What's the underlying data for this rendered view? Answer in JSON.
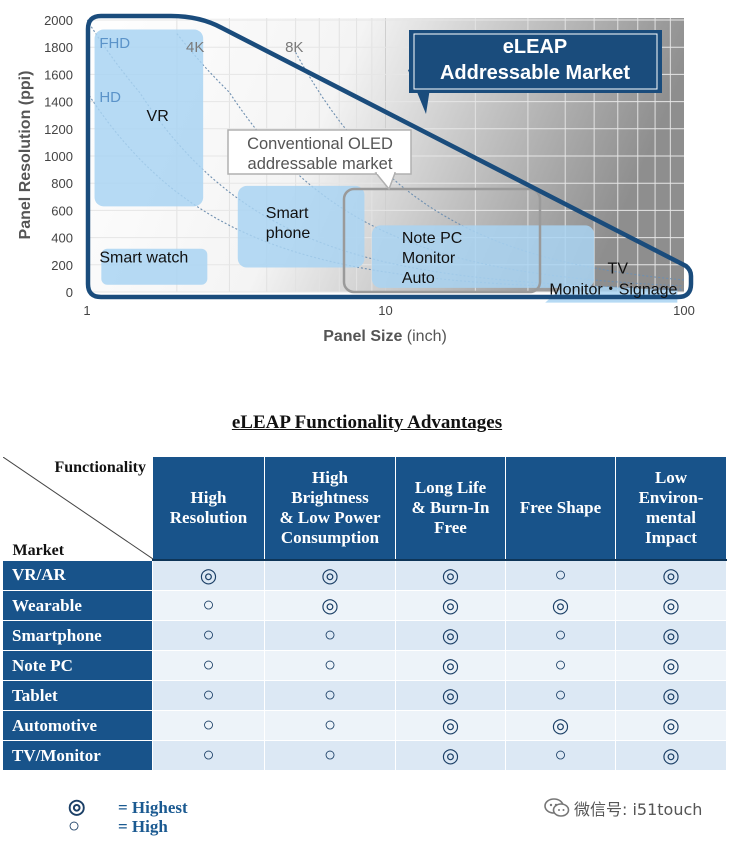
{
  "chart_data": {
    "type": "area",
    "xscale": "log",
    "xlim": [
      1,
      100
    ],
    "ylim": [
      0,
      2000
    ],
    "xticks": [
      "1",
      "10",
      "100"
    ],
    "yticks": [
      "0",
      "200",
      "400",
      "600",
      "800",
      "1000",
      "1200",
      "1400",
      "1600",
      "1800",
      "2000"
    ],
    "xlabel": "Panel Size",
    "xunit": "(inch)",
    "ylabel": "Panel Resolution (ppi)",
    "curve_labels": [
      {
        "label": "FHD",
        "x": 1.05,
        "y": 1840
      },
      {
        "label": "HD",
        "x": 1.05,
        "y": 1440
      },
      {
        "label": "4K",
        "x": 2.05,
        "y": 1810
      },
      {
        "label": "8K",
        "x": 4.4,
        "y": 1810
      }
    ],
    "curves": [
      {
        "label": "FHD",
        "points": [
          [
            1,
            2000
          ],
          [
            1.5,
            1468
          ],
          [
            2,
            1101
          ],
          [
            3,
            734
          ],
          [
            5,
            441
          ],
          [
            10,
            220
          ],
          [
            30,
            73
          ],
          [
            100,
            22
          ]
        ]
      },
      {
        "label": "HD",
        "points": [
          [
            1,
            1469
          ],
          [
            1.5,
            979
          ],
          [
            2,
            734
          ],
          [
            3,
            490
          ],
          [
            5,
            294
          ],
          [
            10,
            147
          ],
          [
            30,
            49
          ],
          [
            100,
            15
          ]
        ]
      },
      {
        "label": "4K",
        "points": [
          [
            2,
            1900
          ],
          [
            3,
            1468
          ],
          [
            5,
            881
          ],
          [
            10,
            441
          ],
          [
            30,
            147
          ],
          [
            100,
            44
          ]
        ]
      },
      {
        "label": "8K",
        "points": [
          [
            5,
            1762
          ],
          [
            10,
            881
          ],
          [
            30,
            294
          ],
          [
            100,
            88
          ]
        ]
      }
    ],
    "segments": [
      {
        "label": "VR",
        "x": [
          1.06,
          2.45
        ],
        "y": [
          630,
          1930
        ]
      },
      {
        "label": "Smart watch",
        "x": 1.05,
        "y": 200
      },
      {
        "label": "Smart\nphone",
        "x": [
          3.2,
          8.5
        ],
        "y": [
          180,
          780
        ]
      },
      {
        "label": "Note PC\nMonitor\nAuto",
        "x": [
          9.0,
          50
        ],
        "y": [
          30,
          490
        ]
      },
      {
        "label": "TV\nMonitor・Signage",
        "x": [
          40,
          95
        ],
        "y": [
          10,
          220
        ]
      }
    ],
    "conventional_oled_label": "Conventional OLED\naddressable market",
    "eleap_label": "eLEAP\nAddressable Market"
  },
  "table": {
    "title": "eLEAP Functionality Advantages",
    "corner_functionality": "Functionality",
    "corner_market": "Market",
    "columns": [
      "High\nResolution",
      "High\nBrightness\n& Low Power\nConsumption",
      "Long Life\n& Burn-In\nFree",
      "Free Shape",
      "Low\nEnviron-\nmental\nImpact"
    ],
    "rows": [
      {
        "market": "VR/AR",
        "marks": [
          "◎",
          "◎",
          "◎",
          "○",
          "◎"
        ]
      },
      {
        "market": "Wearable",
        "marks": [
          "○",
          "◎",
          "◎",
          "◎",
          "◎"
        ]
      },
      {
        "market": "Smartphone",
        "marks": [
          "○",
          "○",
          "◎",
          "○",
          "◎"
        ]
      },
      {
        "market": "Note PC",
        "marks": [
          "○",
          "○",
          "◎",
          "○",
          "◎"
        ]
      },
      {
        "market": "Tablet",
        "marks": [
          "○",
          "○",
          "◎",
          "○",
          "◎"
        ]
      },
      {
        "market": "Automotive",
        "marks": [
          "○",
          "○",
          "◎",
          "◎",
          "◎"
        ]
      },
      {
        "market": "TV/Monitor",
        "marks": [
          "○",
          "○",
          "◎",
          "○",
          "◎"
        ]
      }
    ]
  },
  "legend": [
    {
      "symbol": "◎",
      "text": "= Highest"
    },
    {
      "symbol": "○",
      "text": "= High"
    }
  ],
  "watermark": {
    "icon": "wechat-icon",
    "text": "微信号: i51touch"
  },
  "colors": {
    "eleap_boundary": "#1a4c7c",
    "segment_fill": "#a9d4f2",
    "table_header": "#18538a",
    "row_light": "#dce8f4",
    "legend_text": "#1b5a91"
  }
}
